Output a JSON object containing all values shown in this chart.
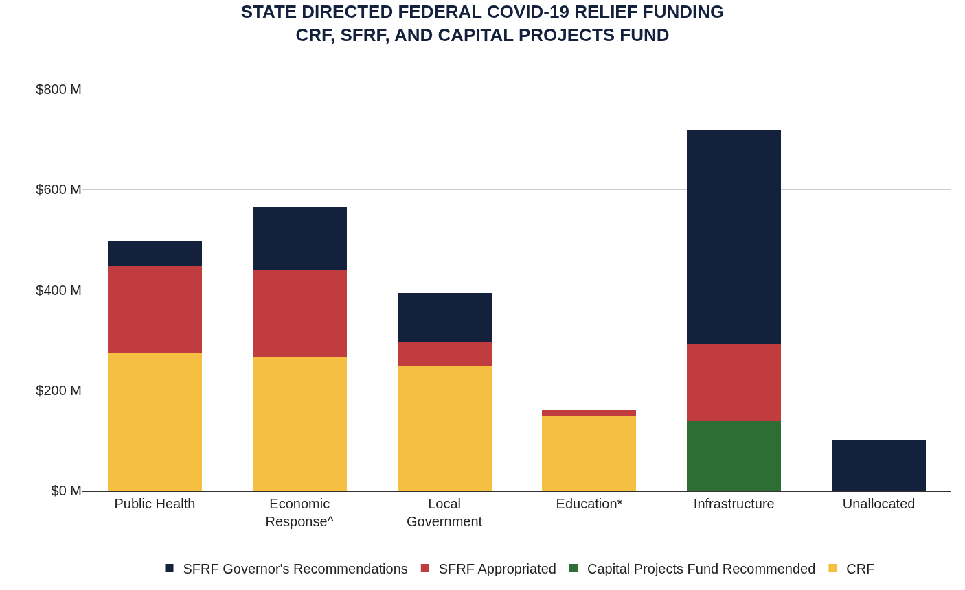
{
  "chart_data": {
    "type": "bar",
    "stacked": true,
    "title": "STATE DIRECTED FEDERAL COVID-19 RELIEF FUNDING\nCRF, SFRF, AND CAPITAL PROJECTS FUND",
    "categories": [
      "Public Health",
      "Economic\nResponse^",
      "Local\nGovernment",
      "Education*",
      "Infrastructure",
      "Unallocated"
    ],
    "series": [
      {
        "name": "CRF",
        "color": "#f5bf42",
        "values": [
          273,
          265,
          248,
          148,
          null,
          null
        ]
      },
      {
        "name": "Capital Projects Fund Recommended",
        "color": "#2e6e35",
        "values": [
          null,
          null,
          null,
          null,
          138,
          null
        ]
      },
      {
        "name": "SFRF Appropriated",
        "color": "#c13c3e",
        "values": [
          175,
          175,
          48,
          14,
          155,
          null
        ]
      },
      {
        "name": "SFRF Governor's Recommendations",
        "color": "#14213d",
        "values": [
          49,
          125,
          98,
          null,
          427,
          100
        ]
      }
    ],
    "ylim": [
      0,
      800
    ],
    "yticks": [
      {
        "value": 0,
        "label": "$0 M"
      },
      {
        "value": 200,
        "label": "$200 M"
      },
      {
        "value": 400,
        "label": "$400 M"
      },
      {
        "value": 600,
        "label": "$600 M"
      },
      {
        "value": 800,
        "label": "$800 M"
      }
    ],
    "grid": "y",
    "legend": "bottom"
  }
}
